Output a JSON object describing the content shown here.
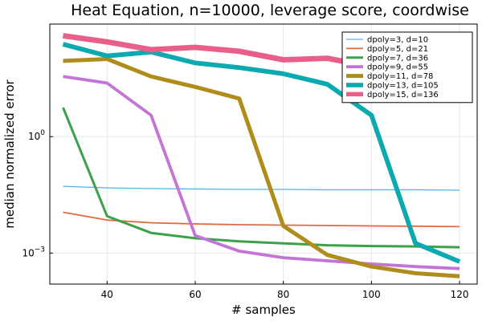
{
  "chart_data": {
    "type": "line",
    "title": "Heat Equation, n=10000, leverage score, coordwise",
    "xlabel": "# samples",
    "ylabel": "median normalized error",
    "xlim": [
      27,
      124
    ],
    "ylim_log10": [
      -3.8,
      2.9
    ],
    "y_scale": "log",
    "x_ticks": [
      40,
      60,
      80,
      100,
      120
    ],
    "x_tick_labels": [
      "40",
      "60",
      "80",
      "100",
      "120"
    ],
    "y_ticks_log10": [
      0,
      -3
    ],
    "y_tick_labels": [
      {
        "base": "10",
        "exp": "0"
      },
      {
        "base": "10",
        "exp": "−3"
      }
    ],
    "grid": true,
    "legend_position": "top-right",
    "x": [
      30,
      40,
      50,
      60,
      70,
      80,
      90,
      100,
      110,
      120
    ],
    "series": [
      {
        "name": "dpoly=3, d=10",
        "color": "#4db3e6",
        "width": 1.3,
        "log10_values": [
          -1.28,
          -1.32,
          -1.34,
          -1.35,
          -1.36,
          -1.36,
          -1.37,
          -1.37,
          -1.37,
          -1.38
        ]
      },
      {
        "name": "dpoly=5, d=21",
        "color": "#e2693e",
        "width": 1.8,
        "log10_values": [
          -1.95,
          -2.15,
          -2.22,
          -2.25,
          -2.27,
          -2.28,
          -2.29,
          -2.3,
          -2.31,
          -2.32
        ]
      },
      {
        "name": "dpoly=7, d=36",
        "color": "#3ba24b",
        "width": 3,
        "log10_values": [
          0.75,
          -2.05,
          -2.48,
          -2.62,
          -2.7,
          -2.75,
          -2.8,
          -2.82,
          -2.83,
          -2.85
        ]
      },
      {
        "name": "dpoly=9, d=55",
        "color": "#c375d6",
        "width": 3.8,
        "log10_values": [
          1.55,
          1.38,
          0.55,
          -2.55,
          -2.95,
          -3.12,
          -3.2,
          -3.28,
          -3.35,
          -3.4
        ]
      },
      {
        "name": "dpoly=11, d=78",
        "color": "#b08c1a",
        "width": 5,
        "log10_values": [
          1.95,
          2.0,
          1.55,
          1.28,
          0.98,
          -2.3,
          -3.05,
          -3.35,
          -3.52,
          -3.6
        ]
      },
      {
        "name": "dpoly=13, d=105",
        "color": "#0ba9b0",
        "width": 5.8,
        "log10_values": [
          2.38,
          2.08,
          2.18,
          1.9,
          1.78,
          1.62,
          1.35,
          0.55,
          -2.75,
          -3.22
        ]
      },
      {
        "name": "dpoly=15, d=136",
        "color": "#ea5e8a",
        "width": 6.8,
        "log10_values": [
          2.6,
          2.44,
          2.24,
          2.3,
          2.2,
          1.98,
          2.02,
          1.8,
          1.25,
          1.15
        ]
      }
    ]
  }
}
